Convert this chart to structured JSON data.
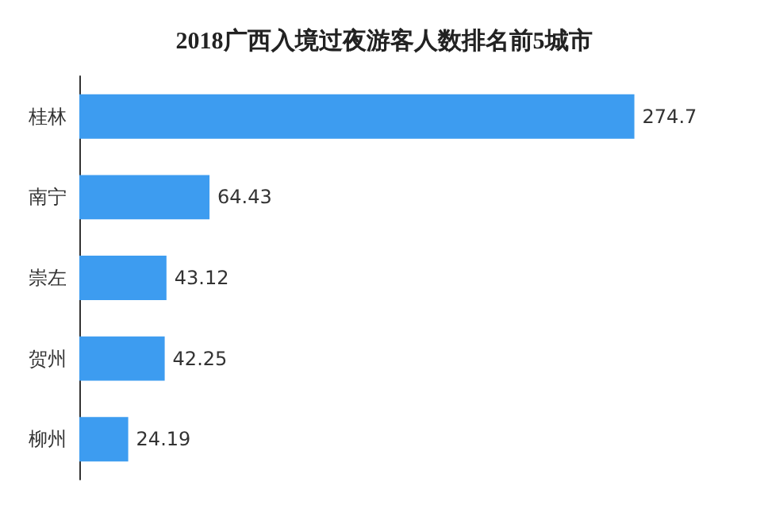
{
  "chart_data": {
    "type": "bar",
    "orientation": "horizontal",
    "title": "2018广西入境过夜游客人数排名前5城市",
    "categories": [
      "桂林",
      "南宁",
      "崇左",
      "贺州",
      "柳州"
    ],
    "values": [
      274.7,
      64.43,
      43.12,
      42.25,
      24.19
    ],
    "color": "#3d9cf0",
    "data_labels": true
  }
}
